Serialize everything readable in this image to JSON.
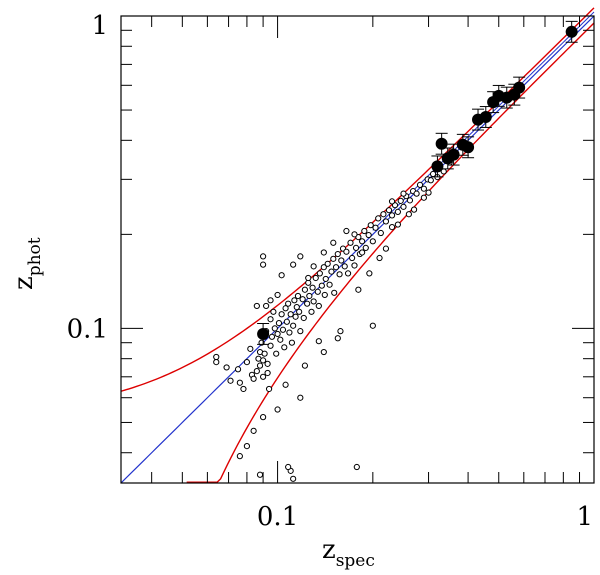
{
  "chart_data": {
    "type": "scatter",
    "title": "",
    "xlabel": "z",
    "xlabel_subscript": "spec",
    "ylabel": "z",
    "ylabel_subscript": "phot",
    "xscale": "log",
    "yscale": "log",
    "xlim": [
      0.032,
      1.0
    ],
    "ylim": [
      0.032,
      1.0
    ],
    "x_tick_labels": [
      {
        "value": 0.1,
        "label": "0.1"
      },
      {
        "value": 1,
        "label": "1"
      }
    ],
    "y_tick_labels": [
      {
        "value": 0.1,
        "label": "0.1"
      },
      {
        "value": 1,
        "label": "1"
      }
    ],
    "grid": false,
    "legend": "none",
    "colors": {
      "identity_line": "#2233cc",
      "envelope": "#dd0000",
      "points": "#000000"
    },
    "series": [
      {
        "kind": "open-points",
        "points": [
          [
            0.064,
            0.081
          ],
          [
            0.064,
            0.078
          ],
          [
            0.069,
            0.075
          ],
          [
            0.071,
            0.068
          ],
          [
            0.075,
            0.074
          ],
          [
            0.076,
            0.067
          ],
          [
            0.078,
            0.064
          ],
          [
            0.08,
            0.078
          ],
          [
            0.082,
            0.086
          ],
          [
            0.083,
            0.071
          ],
          [
            0.084,
            0.069
          ],
          [
            0.086,
            0.073
          ],
          [
            0.087,
            0.08
          ],
          [
            0.088,
            0.084
          ],
          [
            0.088,
            0.076
          ],
          [
            0.089,
            0.09
          ],
          [
            0.09,
            0.079
          ],
          [
            0.09,
            0.07
          ],
          [
            0.091,
            0.094
          ],
          [
            0.091,
            0.083
          ],
          [
            0.092,
            0.098
          ],
          [
            0.093,
            0.077
          ],
          [
            0.093,
            0.072
          ],
          [
            0.094,
            0.064
          ],
          [
            0.095,
            0.088
          ],
          [
            0.095,
            0.107
          ],
          [
            0.096,
            0.094
          ],
          [
            0.097,
            0.113
          ],
          [
            0.098,
            0.1
          ],
          [
            0.099,
            0.083
          ],
          [
            0.1,
            0.096
          ],
          [
            0.101,
            0.104
          ],
          [
            0.102,
            0.092
          ],
          [
            0.103,
            0.111
          ],
          [
            0.104,
            0.099
          ],
          [
            0.105,
            0.087
          ],
          [
            0.106,
            0.116
          ],
          [
            0.107,
            0.105
          ],
          [
            0.108,
            0.12
          ],
          [
            0.109,
            0.097
          ],
          [
            0.11,
            0.111
          ],
          [
            0.111,
            0.09
          ],
          [
            0.112,
            0.102
          ],
          [
            0.113,
            0.123
          ],
          [
            0.114,
            0.109
          ],
          [
            0.115,
            0.117
          ],
          [
            0.116,
            0.127
          ],
          [
            0.117,
            0.113
          ],
          [
            0.118,
            0.098
          ],
          [
            0.12,
            0.124
          ],
          [
            0.121,
            0.108
          ],
          [
            0.122,
            0.133
          ],
          [
            0.124,
            0.12
          ],
          [
            0.125,
            0.14
          ],
          [
            0.126,
            0.127
          ],
          [
            0.128,
            0.113
          ],
          [
            0.129,
            0.135
          ],
          [
            0.13,
            0.122
          ],
          [
            0.132,
            0.145
          ],
          [
            0.134,
            0.131
          ],
          [
            0.135,
            0.118
          ],
          [
            0.136,
            0.15
          ],
          [
            0.138,
            0.137
          ],
          [
            0.14,
            0.157
          ],
          [
            0.141,
            0.128
          ],
          [
            0.142,
            0.144
          ],
          [
            0.144,
            0.161
          ],
          [
            0.146,
            0.138
          ],
          [
            0.148,
            0.152
          ],
          [
            0.15,
            0.167
          ],
          [
            0.151,
            0.13
          ],
          [
            0.153,
            0.157
          ],
          [
            0.155,
            0.173
          ],
          [
            0.157,
            0.149
          ],
          [
            0.159,
            0.165
          ],
          [
            0.161,
            0.18
          ],
          [
            0.163,
            0.158
          ],
          [
            0.165,
            0.176
          ],
          [
            0.167,
            0.15
          ],
          [
            0.17,
            0.188
          ],
          [
            0.172,
            0.168
          ],
          [
            0.175,
            0.159
          ],
          [
            0.177,
            0.181
          ],
          [
            0.18,
            0.196
          ],
          [
            0.182,
            0.173
          ],
          [
            0.185,
            0.19
          ],
          [
            0.188,
            0.205
          ],
          [
            0.19,
            0.181
          ],
          [
            0.194,
            0.199
          ],
          [
            0.197,
            0.214
          ],
          [
            0.2,
            0.19
          ],
          [
            0.204,
            0.21
          ],
          [
            0.208,
            0.225
          ],
          [
            0.212,
            0.202
          ],
          [
            0.216,
            0.232
          ],
          [
            0.22,
            0.22
          ],
          [
            0.225,
            0.239
          ],
          [
            0.23,
            0.23
          ],
          [
            0.235,
            0.248
          ],
          [
            0.24,
            0.236
          ],
          [
            0.245,
            0.256
          ],
          [
            0.25,
            0.245
          ],
          [
            0.255,
            0.265
          ],
          [
            0.262,
            0.257
          ],
          [
            0.268,
            0.275
          ],
          [
            0.275,
            0.27
          ],
          [
            0.282,
            0.288
          ],
          [
            0.29,
            0.28
          ],
          [
            0.298,
            0.3
          ],
          [
            0.305,
            0.298
          ],
          [
            0.31,
            0.312
          ],
          [
            0.26,
            0.232
          ],
          [
            0.24,
            0.215
          ],
          [
            0.23,
            0.211
          ],
          [
            0.27,
            0.24
          ],
          [
            0.29,
            0.262
          ],
          [
            0.3,
            0.272
          ],
          [
            0.32,
            0.305
          ],
          [
            0.335,
            0.318
          ],
          [
            0.35,
            0.34
          ],
          [
            0.09,
            0.17
          ],
          [
            0.09,
            0.16
          ],
          [
            0.103,
            0.148
          ],
          [
            0.112,
            0.16
          ],
          [
            0.118,
            0.17
          ],
          [
            0.13,
            0.158
          ],
          [
            0.165,
            0.205
          ],
          [
            0.175,
            0.2
          ],
          [
            0.185,
            0.175
          ],
          [
            0.15,
            0.188
          ],
          [
            0.14,
            0.175
          ],
          [
            0.125,
            0.145
          ],
          [
            0.095,
            0.123
          ],
          [
            0.086,
            0.118
          ],
          [
            0.092,
            0.118
          ],
          [
            0.1,
            0.128
          ],
          [
            0.09,
            0.052
          ],
          [
            0.084,
            0.047
          ],
          [
            0.08,
            0.042
          ],
          [
            0.076,
            0.039
          ],
          [
            0.112,
            0.033
          ],
          [
            0.11,
            0.035
          ],
          [
            0.108,
            0.036
          ],
          [
            0.088,
            0.034
          ],
          [
            0.155,
            0.093
          ],
          [
            0.158,
            0.098
          ],
          [
            0.14,
            0.084
          ],
          [
            0.135,
            0.091
          ],
          [
            0.122,
            0.076
          ],
          [
            0.118,
            0.06
          ],
          [
            0.106,
            0.066
          ],
          [
            0.1,
            0.055
          ],
          [
            0.18,
            0.133
          ],
          [
            0.195,
            0.15
          ],
          [
            0.21,
            0.168
          ],
          [
            0.22,
            0.18
          ],
          [
            0.178,
            0.036
          ],
          [
            0.2,
            0.102
          ],
          [
            0.23,
            0.255
          ],
          [
            0.25,
            0.27
          ]
        ]
      },
      {
        "kind": "filled-points",
        "points": [
          [
            0.09,
            0.096
          ],
          [
            0.32,
            0.33
          ],
          [
            0.33,
            0.39
          ],
          [
            0.345,
            0.35
          ],
          [
            0.36,
            0.36
          ],
          [
            0.385,
            0.387
          ],
          [
            0.4,
            0.38
          ],
          [
            0.43,
            0.466
          ],
          [
            0.455,
            0.475
          ],
          [
            0.48,
            0.53
          ],
          [
            0.5,
            0.555
          ],
          [
            0.53,
            0.548
          ],
          [
            0.56,
            0.56
          ],
          [
            0.58,
            0.59
          ],
          [
            0.85,
            0.89
          ]
        ]
      }
    ]
  }
}
